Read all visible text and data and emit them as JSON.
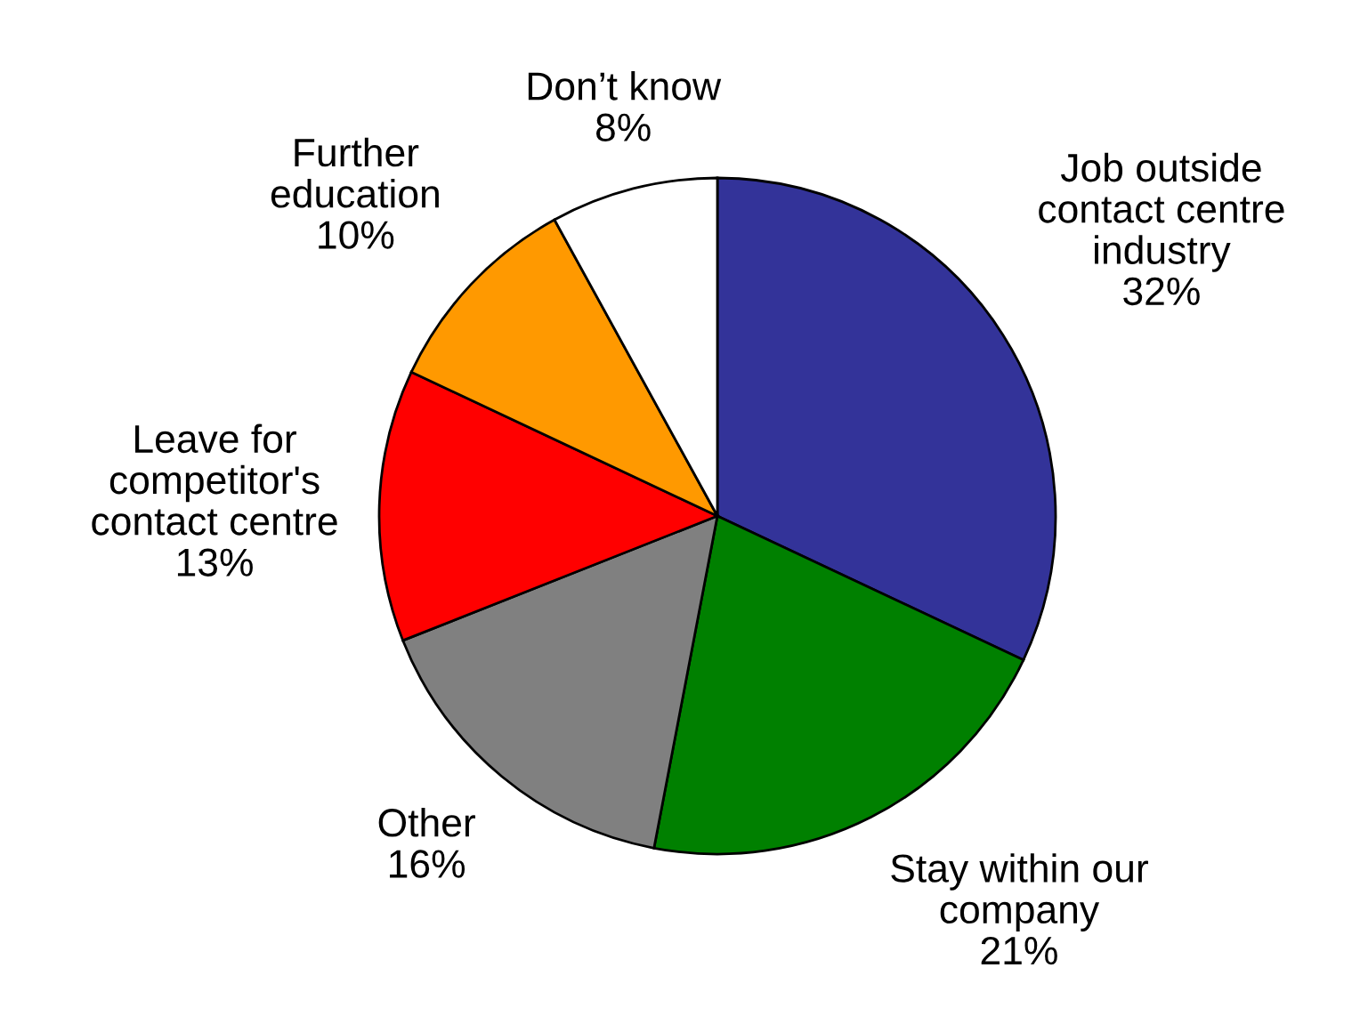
{
  "chart_data": {
    "type": "pie",
    "categories": [
      "Job outside\ncontact centre\nindustry",
      "Stay within our\ncompany",
      "Other",
      "Leave for\ncompetitor's\ncontact centre",
      "Further\neducation",
      "Don’t know"
    ],
    "values": [
      32,
      21,
      16,
      13,
      10,
      8
    ],
    "value_labels": [
      "32%",
      "21%",
      "16%",
      "13%",
      "10%",
      "8%"
    ],
    "colors": [
      "#333399",
      "#008000",
      "#808080",
      "#ff0000",
      "#ff9900",
      "#ffffff"
    ],
    "legend": false
  }
}
